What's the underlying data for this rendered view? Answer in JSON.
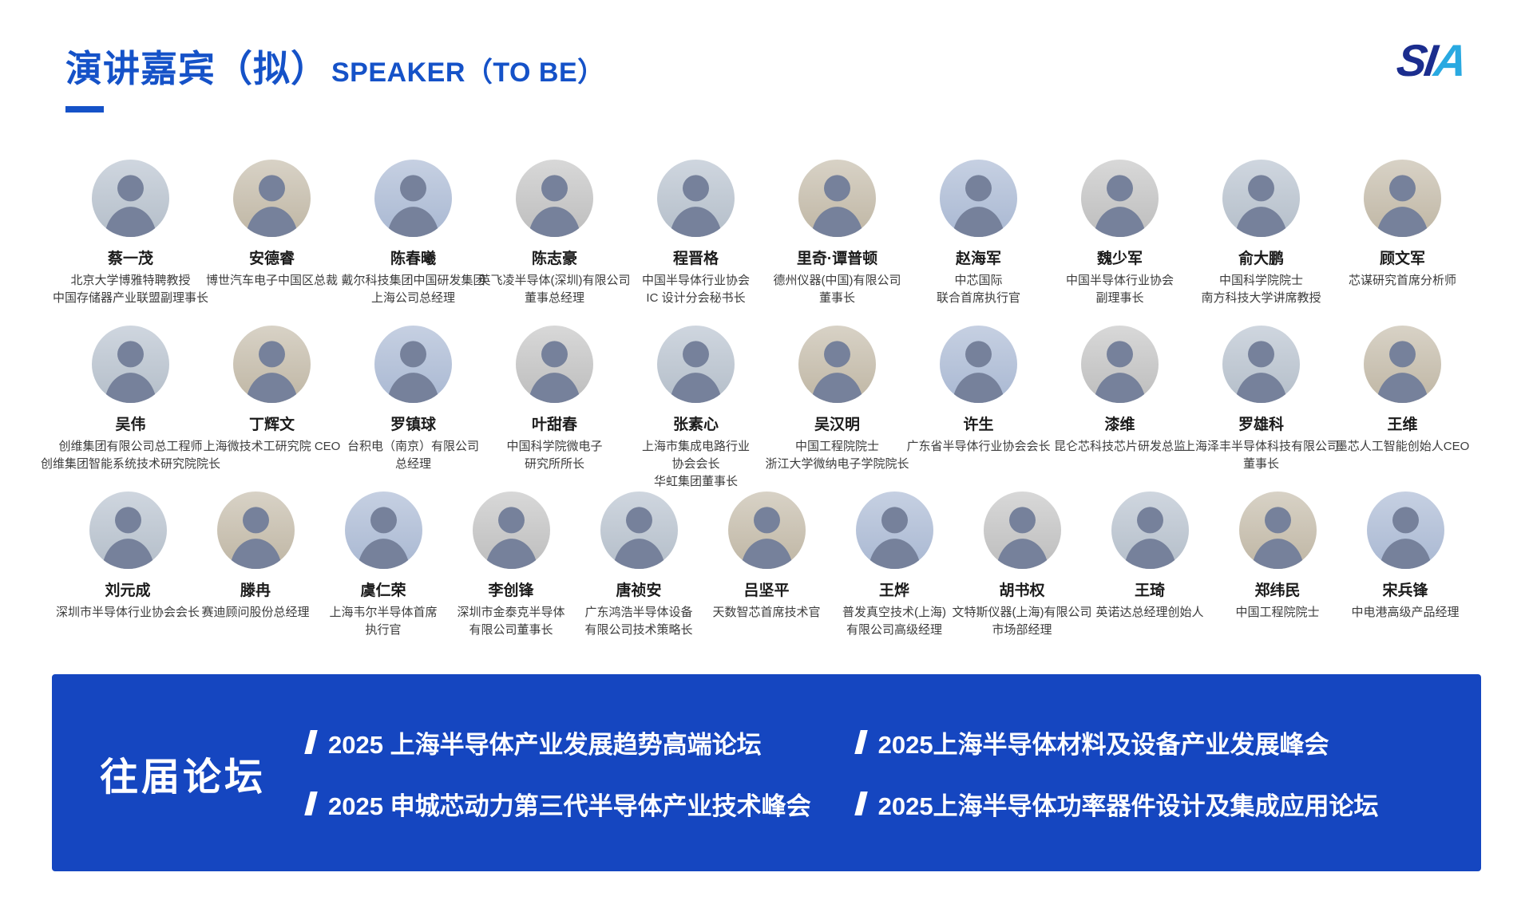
{
  "header": {
    "title_zh": "演讲嘉宾（拟）",
    "title_en": "SPEAKER（TO BE）",
    "logo": [
      "S",
      "I",
      "A"
    ]
  },
  "colors": {
    "title_blue": "#1552c8",
    "banner_blue": "#1546c0",
    "logo_navy": "#1b2d8e",
    "logo_lightblue": "#29a9e1"
  },
  "speakers": {
    "rows": [
      {
        "items": [
          {
            "name": "蔡一茂",
            "titles": [
              "北京大学博雅特聘教授",
              "中国存储器产业联盟副理事长"
            ]
          },
          {
            "name": "安德睿",
            "titles": [
              "博世汽车电子中国区总裁"
            ]
          },
          {
            "name": "陈春曦",
            "titles": [
              "戴尔科技集团中国研发集团",
              "上海公司总经理"
            ]
          },
          {
            "name": "陈志豪",
            "titles": [
              "英飞凌半导体(深圳)有限公司",
              "董事总经理"
            ]
          },
          {
            "name": "程晋格",
            "titles": [
              "中国半导体行业协会",
              "IC 设计分会秘书长"
            ]
          },
          {
            "name": "里奇·谭普顿",
            "titles": [
              "德州仪器(中国)有限公司",
              "董事长"
            ]
          },
          {
            "name": "赵海军",
            "titles": [
              "中芯国际",
              "联合首席执行官"
            ]
          },
          {
            "name": "魏少军",
            "titles": [
              "中国半导体行业协会",
              "副理事长"
            ]
          },
          {
            "name": "俞大鹏",
            "titles": [
              "中国科学院院士",
              "南方科技大学讲席教授"
            ]
          },
          {
            "name": "顾文军",
            "titles": [
              "芯谋研究首席分析师"
            ]
          }
        ]
      },
      {
        "items": [
          {
            "name": "吴伟",
            "titles": [
              "创维集团有限公司总工程师",
              "创维集团智能系统技术研究院院长"
            ]
          },
          {
            "name": "丁辉文",
            "titles": [
              "上海微技术工研究院 CEO"
            ]
          },
          {
            "name": "罗镇球",
            "titles": [
              "台积电（南京）有限公司",
              "总经理"
            ]
          },
          {
            "name": "叶甜春",
            "titles": [
              "中国科学院微电子",
              "研究所所长"
            ]
          },
          {
            "name": "张素心",
            "titles": [
              "上海市集成电路行业",
              "协会会长",
              "华虹集团董事长"
            ]
          },
          {
            "name": "吴汉明",
            "titles": [
              "中国工程院院士",
              "浙江大学微纳电子学院院长"
            ]
          },
          {
            "name": "许生",
            "titles": [
              "广东省半导体行业协会会长"
            ]
          },
          {
            "name": "漆维",
            "titles": [
              "昆仑芯科技芯片研发总监"
            ]
          },
          {
            "name": "罗雄科",
            "titles": [
              "上海泽丰半导体科技有限公司",
              "董事长"
            ]
          },
          {
            "name": "王维",
            "titles": [
              "墨芯人工智能创始人CEO"
            ]
          }
        ]
      },
      {
        "items": [
          {
            "name": "刘元成",
            "titles": [
              "深圳市半导体行业协会会长"
            ]
          },
          {
            "name": "滕冉",
            "titles": [
              "赛迪顾问股份总经理"
            ]
          },
          {
            "name": "虞仁荣",
            "titles": [
              "上海韦尔半导体首席",
              "执行官"
            ]
          },
          {
            "name": "李创锋",
            "titles": [
              "深圳市金泰克半导体",
              "有限公司董事长"
            ]
          },
          {
            "name": "唐祯安",
            "titles": [
              "广东鸿浩半导体设备",
              "有限公司技术策略长"
            ]
          },
          {
            "name": "吕坚平",
            "titles": [
              "天数智芯首席技术官"
            ]
          },
          {
            "name": "王烨",
            "titles": [
              "普发真空技术(上海)",
              "有限公司高级经理"
            ]
          },
          {
            "name": "胡书权",
            "titles": [
              "文特斯仪器(上海)有限公司",
              "市场部经理"
            ]
          },
          {
            "name": "王琦",
            "titles": [
              "英诺达总经理创始人"
            ]
          },
          {
            "name": "郑纬民",
            "titles": [
              "中国工程院院士"
            ]
          },
          {
            "name": "宋兵锋",
            "titles": [
              "中电港高级产品经理"
            ]
          }
        ]
      }
    ]
  },
  "footer": {
    "heading": "往届论坛",
    "forums": [
      "2025 上海半导体产业发展趋势高端论坛",
      "2025上海半导体材料及设备产业发展峰会",
      "2025 申城芯动力第三代半导体产业技术峰会",
      "2025上海半导体功率器件设计及集成应用论坛"
    ]
  }
}
